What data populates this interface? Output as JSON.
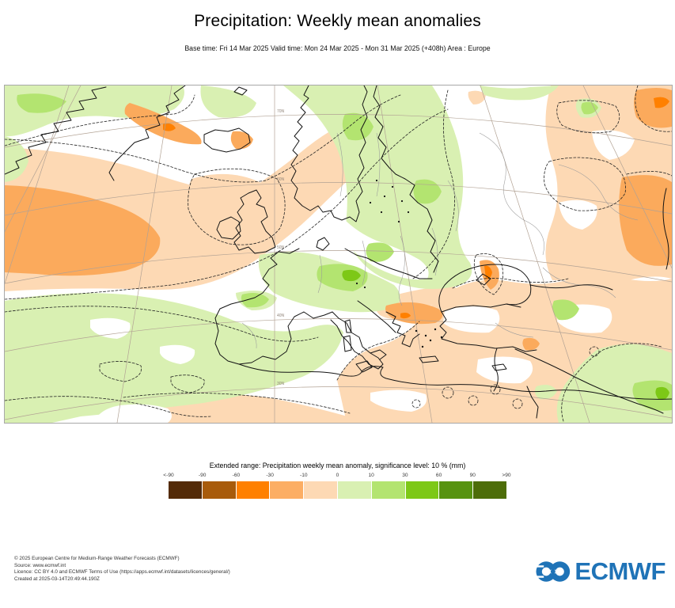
{
  "header": {
    "title": "Precipitation: Weekly mean anomalies",
    "subtitle": "Base time: Fri 14 Mar 2025 Valid time: Mon 24 Mar 2025 - Mon 31 Mar 2025 (+408h) Area : Europe"
  },
  "map": {
    "graticule_labels": [
      "70N",
      "60N",
      "50N",
      "40N",
      "30N"
    ],
    "frame_color": "#a8a8a8",
    "palette": {
      "peach": "#fdd9b4",
      "orange_mid": "#fbaa5c",
      "orange_strong": "#ff8000",
      "green_light": "#d9f0b2",
      "green_mid": "#b3e470",
      "green_bright": "#7dc816"
    }
  },
  "legend": {
    "title": "Extended range: Precipitation weekly mean anomaly, significance level: 10 % (mm)",
    "ticks": [
      "<-90",
      "-90",
      "-60",
      "-30",
      "-10",
      "0",
      "10",
      "30",
      "60",
      "90",
      ">90"
    ],
    "colors": [
      "#542b08",
      "#a85b0b",
      "#ff8000",
      "#fcae64",
      "#fdd9b4",
      "#d9f0b2",
      "#b3e470",
      "#7dc816",
      "#579310",
      "#4d6d09"
    ]
  },
  "footer": {
    "lines": [
      "© 2025 European Centre for Medium-Range Weather Forecasts (ECMWF)",
      "Source: www.ecmwf.int",
      "Licence: CC BY 4.0 and ECMWF Terms of Use (https://apps.ecmwf.int/datasets/licences/general/)",
      "Created at 2025-03-14T20:49:44.190Z"
    ]
  },
  "logo": {
    "text": "ECMWF",
    "color": "#1f73b7"
  }
}
